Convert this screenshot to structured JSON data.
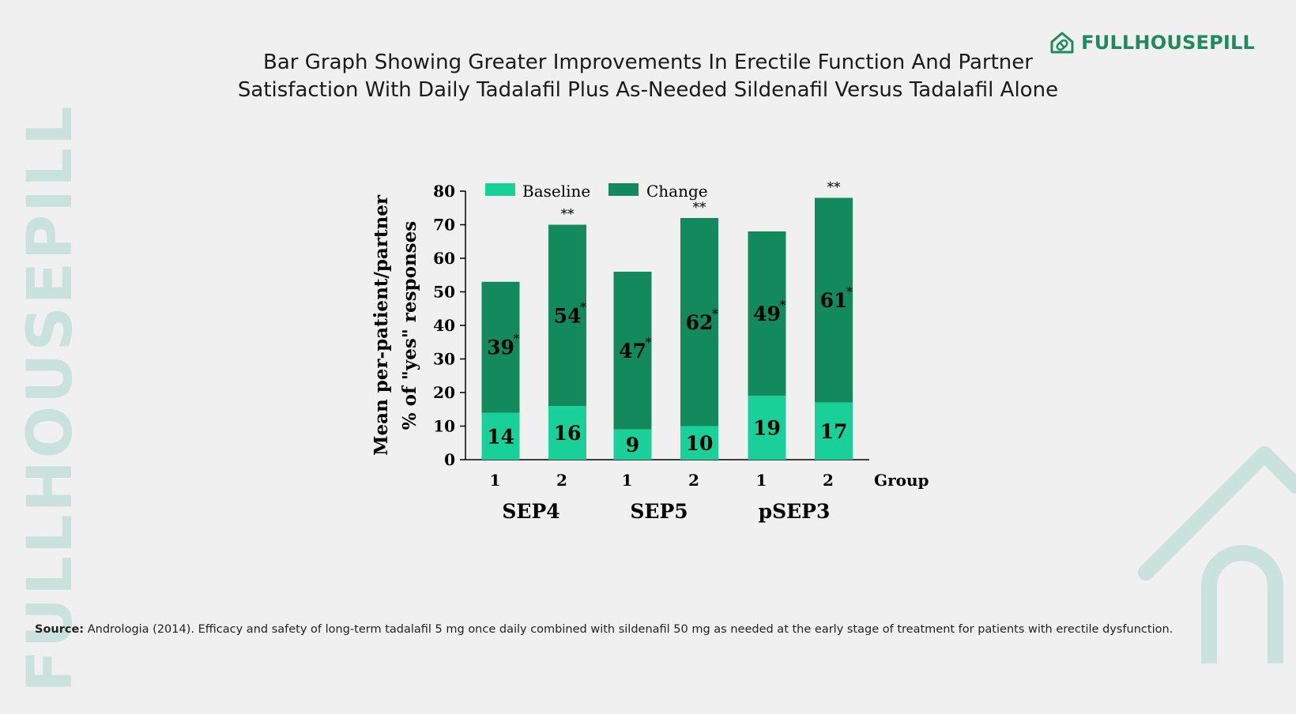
{
  "title": {
    "line1": "Bar Graph Showing Greater Improvements In Erectile Function And Partner",
    "line2": "Satisfaction With Daily Tadalafil Plus As-Needed Sildenafil Versus Tadalafil Alone"
  },
  "brand": {
    "name": "FULLHOUSEPILL",
    "watermark": "FULLHOUSEPILL",
    "icon": "house-pill-icon",
    "color": "#1f8a5c",
    "watermark_color": "#c9e2dc"
  },
  "source": {
    "label": "Source:",
    "text": " Andrologia (2014). Efficacy and safety of long-term tadalafil 5 mg once daily combined with sildenafil 50 mg as needed at the early stage of treatment for patients with erectile dysfunction."
  },
  "chart_data": {
    "type": "bar",
    "stacked": true,
    "ylabel_line1": "Mean per-patient/partner",
    "ylabel_line2": "% of \"yes\" responses",
    "xlabel": "Group",
    "ylim": [
      0,
      80
    ],
    "yticks": [
      0,
      10,
      20,
      30,
      40,
      50,
      60,
      70,
      80
    ],
    "legend_position": "top",
    "colors": {
      "Baseline": "#19d198",
      "Change": "#138a5e"
    },
    "categories": [
      {
        "group": "1",
        "measure": "SEP4"
      },
      {
        "group": "2",
        "measure": "SEP4"
      },
      {
        "group": "1",
        "measure": "SEP5"
      },
      {
        "group": "2",
        "measure": "SEP5"
      },
      {
        "group": "1",
        "measure": "pSEP3"
      },
      {
        "group": "2",
        "measure": "pSEP3"
      }
    ],
    "measures": [
      "SEP4",
      "SEP5",
      "pSEP3"
    ],
    "series": [
      {
        "name": "Baseline",
        "values": [
          14,
          16,
          9,
          10,
          19,
          17
        ]
      },
      {
        "name": "Change",
        "values": [
          39,
          54,
          47,
          62,
          49,
          61
        ]
      }
    ],
    "change_marks": [
      "*",
      "*",
      "*",
      "*",
      "*",
      "*"
    ],
    "top_marks": [
      "",
      "**",
      "",
      "**",
      "",
      "**"
    ]
  }
}
